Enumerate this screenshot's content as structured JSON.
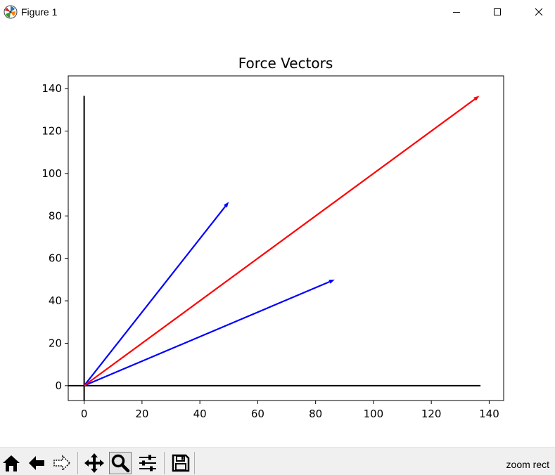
{
  "window": {
    "title": "Figure 1",
    "icon": "matplotlib-logo-icon",
    "controls": [
      "minimize-icon",
      "maximize-icon",
      "close-icon"
    ]
  },
  "chart_data": {
    "type": "vector",
    "title": "Force Vectors",
    "xlabel": "",
    "ylabel": "",
    "xlim": [
      -5.5,
      145
    ],
    "ylim": [
      -7,
      146
    ],
    "xticks": [
      0,
      20,
      40,
      60,
      80,
      100,
      120,
      140
    ],
    "yticks": [
      0,
      20,
      40,
      60,
      80,
      100,
      120,
      140
    ],
    "grid": false,
    "axis_lines": [
      {
        "from": [
          -5.5,
          0
        ],
        "to": [
          137,
          0
        ],
        "color": "#000000"
      },
      {
        "from": [
          0,
          -7
        ],
        "to": [
          0,
          136.6
        ],
        "color": "#000000"
      }
    ],
    "vectors": [
      {
        "from": [
          0,
          0
        ],
        "to": [
          50,
          86.6
        ],
        "color": "#0000ff"
      },
      {
        "from": [
          0,
          0
        ],
        "to": [
          86.6,
          50
        ],
        "color": "#0000ff"
      },
      {
        "from": [
          0,
          0
        ],
        "to": [
          136.6,
          136.6
        ],
        "color": "#ff0000"
      }
    ]
  },
  "toolbar": {
    "buttons": [
      {
        "name": "home-icon",
        "active": false
      },
      {
        "name": "back-icon",
        "active": false
      },
      {
        "name": "forward-icon",
        "active": false
      },
      {
        "name": "pan-icon",
        "active": false
      },
      {
        "name": "zoom-icon",
        "active": true
      },
      {
        "name": "configure-subplots-icon",
        "active": false
      },
      {
        "name": "save-icon",
        "active": false
      }
    ],
    "status": "zoom rect"
  }
}
